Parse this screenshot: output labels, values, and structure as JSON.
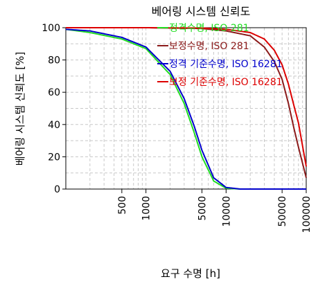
{
  "chart_data": {
    "type": "line",
    "title": "베어링 시스템 신뢰도",
    "xlabel": "요구 수명 [h]",
    "ylabel": "베어링 시스템 신뢰도 [%]",
    "xscale": "log",
    "xlim": [
      100,
      100000
    ],
    "ylim": [
      0,
      100
    ],
    "xticks": [
      "500",
      "1000",
      "5000",
      "10000",
      "50000",
      "100000"
    ],
    "yticks": [
      "0",
      "20",
      "40",
      "60",
      "80",
      "100"
    ],
    "grid": true,
    "legend": "top-right",
    "series": [
      {
        "name": "정격수명, ISO 281",
        "color": "#22dd22",
        "x": [
          100,
          200,
          500,
          1000,
          2000,
          3000,
          4000,
          5000,
          7000,
          10000,
          15000,
          20000,
          50000,
          100000
        ],
        "y": [
          99,
          97,
          93,
          87,
          71,
          53,
          35,
          20,
          5,
          0.5,
          0,
          0,
          0,
          0
        ]
      },
      {
        "name": "보정수명, ISO 281",
        "color": "#8b1a1a",
        "x": [
          100,
          1000,
          5000,
          10000,
          20000,
          30000,
          40000,
          50000,
          60000,
          70000,
          80000,
          100000
        ],
        "y": [
          100,
          100,
          99.5,
          98,
          95,
          88,
          79,
          68,
          53,
          38,
          26,
          7
        ]
      },
      {
        "name": "정격 기준수명, ISO 16281",
        "color": "#0000cc",
        "x": [
          100,
          200,
          500,
          1000,
          2000,
          3000,
          4000,
          5000,
          7000,
          10000,
          15000,
          20000,
          50000,
          100000
        ],
        "y": [
          99,
          98,
          94,
          88,
          73,
          56,
          39,
          24,
          7,
          1,
          0,
          0,
          0,
          0
        ]
      },
      {
        "name": "보정 기준수명, ISO 16281",
        "color": "#dd0000",
        "x": [
          100,
          1000,
          5000,
          10000,
          20000,
          30000,
          40000,
          50000,
          60000,
          70000,
          80000,
          100000
        ],
        "y": [
          100,
          100,
          99.8,
          99,
          97,
          93,
          86,
          77,
          65,
          52,
          41,
          14
        ]
      }
    ]
  }
}
